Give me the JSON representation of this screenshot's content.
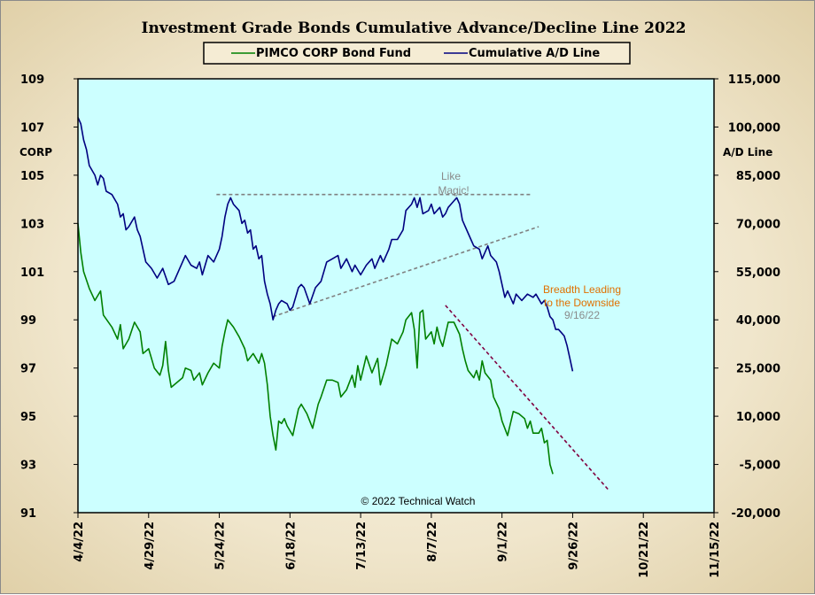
{
  "chart_data": {
    "type": "line",
    "title": "Investment Grade Bonds Cumulative  Advance/Decline  Line 2022",
    "left_axis": {
      "label": "CORP",
      "ticks": [
        "109",
        "107",
        "105",
        "103",
        "101",
        "99",
        "97",
        "95",
        "93",
        "91"
      ],
      "range": [
        91,
        109
      ]
    },
    "right_axis": {
      "label": "A/D Line",
      "ticks": [
        "115,000",
        "100,000",
        "85,000",
        "70,000",
        "55,000",
        "40,000",
        "25,000",
        "10,000",
        "-5,000",
        "-20,000"
      ],
      "range": [
        -20000,
        115000
      ]
    },
    "x_ticks": [
      "4/4/22",
      "4/29/22",
      "5/24/22",
      "6/18/22",
      "7/13/22",
      "8/7/22",
      "9/1/22",
      "9/26/22",
      "10/21/22",
      "11/15/22"
    ],
    "x_range_days": [
      0,
      225
    ],
    "plot_background": "#ccffff",
    "legend": {
      "placement": "top",
      "entries": [
        "PIMCO CORP Bond Fund",
        "Cumulative A/D Line"
      ]
    },
    "series": [
      {
        "name": "PIMCO CORP Bond Fund",
        "axis": "left",
        "color": "#008000",
        "points": [
          [
            0,
            103.0
          ],
          [
            1,
            101.8
          ],
          [
            2,
            101.0
          ],
          [
            4,
            100.3
          ],
          [
            6,
            99.8
          ],
          [
            8,
            100.2
          ],
          [
            9,
            99.2
          ],
          [
            12,
            98.7
          ],
          [
            14,
            98.2
          ],
          [
            15,
            98.8
          ],
          [
            16,
            97.8
          ],
          [
            18,
            98.2
          ],
          [
            20,
            98.9
          ],
          [
            22,
            98.5
          ],
          [
            23,
            97.6
          ],
          [
            25,
            97.8
          ],
          [
            27,
            97.0
          ],
          [
            29,
            96.7
          ],
          [
            30,
            97.1
          ],
          [
            31,
            98.1
          ],
          [
            32,
            96.9
          ],
          [
            33,
            96.2
          ],
          [
            35,
            96.4
          ],
          [
            37,
            96.6
          ],
          [
            38,
            97.0
          ],
          [
            40,
            96.9
          ],
          [
            41,
            96.5
          ],
          [
            43,
            96.8
          ],
          [
            44,
            96.3
          ],
          [
            46,
            96.8
          ],
          [
            48,
            97.2
          ],
          [
            50,
            97.0
          ],
          [
            51,
            97.9
          ],
          [
            52,
            98.5
          ],
          [
            53,
            99.0
          ],
          [
            55,
            98.7
          ],
          [
            57,
            98.3
          ],
          [
            59,
            97.8
          ],
          [
            60,
            97.3
          ],
          [
            62,
            97.6
          ],
          [
            64,
            97.2
          ],
          [
            65,
            97.6
          ],
          [
            66,
            97.2
          ],
          [
            67,
            96.3
          ],
          [
            68,
            95.0
          ],
          [
            69,
            94.2
          ],
          [
            70,
            93.6
          ],
          [
            71,
            94.8
          ],
          [
            72,
            94.7
          ],
          [
            73,
            94.9
          ],
          [
            74,
            94.6
          ],
          [
            76,
            94.2
          ],
          [
            78,
            95.3
          ],
          [
            79,
            95.5
          ],
          [
            81,
            95.1
          ],
          [
            83,
            94.5
          ],
          [
            85,
            95.5
          ],
          [
            86,
            95.8
          ],
          [
            88,
            96.5
          ],
          [
            90,
            96.5
          ],
          [
            92,
            96.4
          ],
          [
            93,
            95.8
          ],
          [
            95,
            96.1
          ],
          [
            97,
            96.7
          ],
          [
            98,
            96.2
          ],
          [
            99,
            97.1
          ],
          [
            100,
            96.5
          ],
          [
            102,
            97.5
          ],
          [
            104,
            96.8
          ],
          [
            106,
            97.4
          ],
          [
            107,
            96.3
          ],
          [
            109,
            97.1
          ],
          [
            111,
            98.2
          ],
          [
            113,
            98.0
          ],
          [
            115,
            98.5
          ],
          [
            116,
            99.0
          ],
          [
            118,
            99.3
          ],
          [
            119,
            98.6
          ],
          [
            120,
            97.0
          ],
          [
            121,
            99.3
          ],
          [
            122,
            99.4
          ],
          [
            123,
            98.2
          ],
          [
            125,
            98.5
          ],
          [
            126,
            98.0
          ],
          [
            127,
            98.7
          ],
          [
            128,
            98.2
          ],
          [
            129,
            97.9
          ],
          [
            131,
            98.9
          ],
          [
            133,
            98.9
          ],
          [
            135,
            98.4
          ],
          [
            136,
            97.8
          ],
          [
            137,
            97.3
          ],
          [
            138,
            96.9
          ],
          [
            140,
            96.6
          ],
          [
            141,
            96.9
          ],
          [
            142,
            96.5
          ],
          [
            143,
            97.3
          ],
          [
            144,
            96.8
          ],
          [
            146,
            96.5
          ],
          [
            147,
            95.8
          ],
          [
            149,
            95.3
          ],
          [
            150,
            94.8
          ],
          [
            152,
            94.2
          ],
          [
            154,
            95.2
          ],
          [
            156,
            95.1
          ],
          [
            158,
            94.9
          ],
          [
            159,
            94.5
          ],
          [
            160,
            94.8
          ],
          [
            161,
            94.3
          ],
          [
            163,
            94.3
          ],
          [
            164,
            94.5
          ],
          [
            165,
            93.9
          ],
          [
            166,
            94.0
          ],
          [
            167,
            93.0
          ],
          [
            168,
            92.6
          ]
        ]
      },
      {
        "name": "Cumulative A/D Line",
        "axis": "right",
        "color": "#000080",
        "points": [
          [
            0,
            103000
          ],
          [
            1,
            101000
          ],
          [
            2,
            96000
          ],
          [
            3,
            93000
          ],
          [
            4,
            88000
          ],
          [
            6,
            85000
          ],
          [
            7,
            82000
          ],
          [
            8,
            85000
          ],
          [
            9,
            84000
          ],
          [
            10,
            80000
          ],
          [
            12,
            79000
          ],
          [
            14,
            76000
          ],
          [
            15,
            72000
          ],
          [
            16,
            73000
          ],
          [
            17,
            68000
          ],
          [
            18,
            69000
          ],
          [
            20,
            72000
          ],
          [
            21,
            68000
          ],
          [
            22,
            66000
          ],
          [
            24,
            58000
          ],
          [
            26,
            56000
          ],
          [
            28,
            53000
          ],
          [
            30,
            56000
          ],
          [
            32,
            51000
          ],
          [
            34,
            52000
          ],
          [
            36,
            56000
          ],
          [
            38,
            60000
          ],
          [
            40,
            57000
          ],
          [
            42,
            56000
          ],
          [
            43,
            58000
          ],
          [
            44,
            54000
          ],
          [
            46,
            60000
          ],
          [
            48,
            58000
          ],
          [
            50,
            62000
          ],
          [
            51,
            66000
          ],
          [
            52,
            72000
          ],
          [
            53,
            76000
          ],
          [
            54,
            78000
          ],
          [
            55,
            76000
          ],
          [
            57,
            74000
          ],
          [
            58,
            70000
          ],
          [
            59,
            71000
          ],
          [
            60,
            67000
          ],
          [
            61,
            68000
          ],
          [
            62,
            62000
          ],
          [
            63,
            63000
          ],
          [
            64,
            59000
          ],
          [
            65,
            60000
          ],
          [
            66,
            52000
          ],
          [
            67,
            48000
          ],
          [
            68,
            45000
          ],
          [
            69,
            40000
          ],
          [
            70,
            43000
          ],
          [
            71,
            45000
          ],
          [
            72,
            46000
          ],
          [
            74,
            45000
          ],
          [
            75,
            43000
          ],
          [
            76,
            44000
          ],
          [
            78,
            50000
          ],
          [
            79,
            51000
          ],
          [
            80,
            50000
          ],
          [
            82,
            45000
          ],
          [
            84,
            50000
          ],
          [
            86,
            52000
          ],
          [
            88,
            58000
          ],
          [
            90,
            59000
          ],
          [
            92,
            60000
          ],
          [
            93,
            56000
          ],
          [
            95,
            59000
          ],
          [
            97,
            55000
          ],
          [
            98,
            57000
          ],
          [
            100,
            54000
          ],
          [
            102,
            57000
          ],
          [
            104,
            59000
          ],
          [
            105,
            56000
          ],
          [
            107,
            60000
          ],
          [
            108,
            58000
          ],
          [
            110,
            62000
          ],
          [
            111,
            65000
          ],
          [
            113,
            65000
          ],
          [
            115,
            68000
          ],
          [
            116,
            74000
          ],
          [
            118,
            76000
          ],
          [
            119,
            78000
          ],
          [
            120,
            75000
          ],
          [
            121,
            78000
          ],
          [
            122,
            73000
          ],
          [
            124,
            74000
          ],
          [
            125,
            76000
          ],
          [
            126,
            73000
          ],
          [
            128,
            75000
          ],
          [
            129,
            72000
          ],
          [
            130,
            73000
          ],
          [
            131,
            75000
          ],
          [
            133,
            77000
          ],
          [
            134,
            78000
          ],
          [
            135,
            76000
          ],
          [
            136,
            71000
          ],
          [
            137,
            69000
          ],
          [
            139,
            65000
          ],
          [
            140,
            63000
          ],
          [
            142,
            62000
          ],
          [
            143,
            59000
          ],
          [
            145,
            63000
          ],
          [
            146,
            60000
          ],
          [
            148,
            58000
          ],
          [
            149,
            55000
          ],
          [
            150,
            51000
          ],
          [
            151,
            47000
          ],
          [
            152,
            49000
          ],
          [
            154,
            45000
          ],
          [
            155,
            48000
          ],
          [
            157,
            46000
          ],
          [
            159,
            48000
          ],
          [
            161,
            47000
          ],
          [
            162,
            48000
          ],
          [
            164,
            45000
          ],
          [
            165,
            46000
          ],
          [
            166,
            44000
          ],
          [
            167,
            41000
          ],
          [
            168,
            40000
          ],
          [
            169,
            37000
          ],
          [
            170,
            37000
          ],
          [
            171,
            36000
          ],
          [
            172,
            35000
          ],
          [
            173,
            32000
          ],
          [
            174,
            28000
          ],
          [
            175,
            24000
          ]
        ]
      }
    ],
    "trendlines": [
      {
        "style": "dashed",
        "color": "#808080",
        "axis": "right",
        "from": [
          49,
          79000
        ],
        "to": [
          160,
          79000
        ]
      },
      {
        "style": "dashed",
        "color": "#808080",
        "axis": "right",
        "from": [
          69,
          41000
        ],
        "to": [
          163,
          69000
        ]
      },
      {
        "style": "dashed",
        "color": "#800040",
        "axis": "left",
        "from": [
          130,
          99.6
        ],
        "to": [
          188,
          91.9
        ]
      }
    ],
    "annotations": [
      {
        "id": "like-magic",
        "lines": [
          "Like",
          "Magic!"
        ],
        "color": "#8a8a8a"
      },
      {
        "id": "breadth",
        "lines": [
          "Breadth Leading",
          "to the Downside"
        ],
        "color": "#e07000"
      },
      {
        "id": "breadth-date",
        "lines": [
          "9/16/22"
        ],
        "color": "#8a8a8a"
      }
    ],
    "copyright": "© 2022 Technical  Watch"
  }
}
